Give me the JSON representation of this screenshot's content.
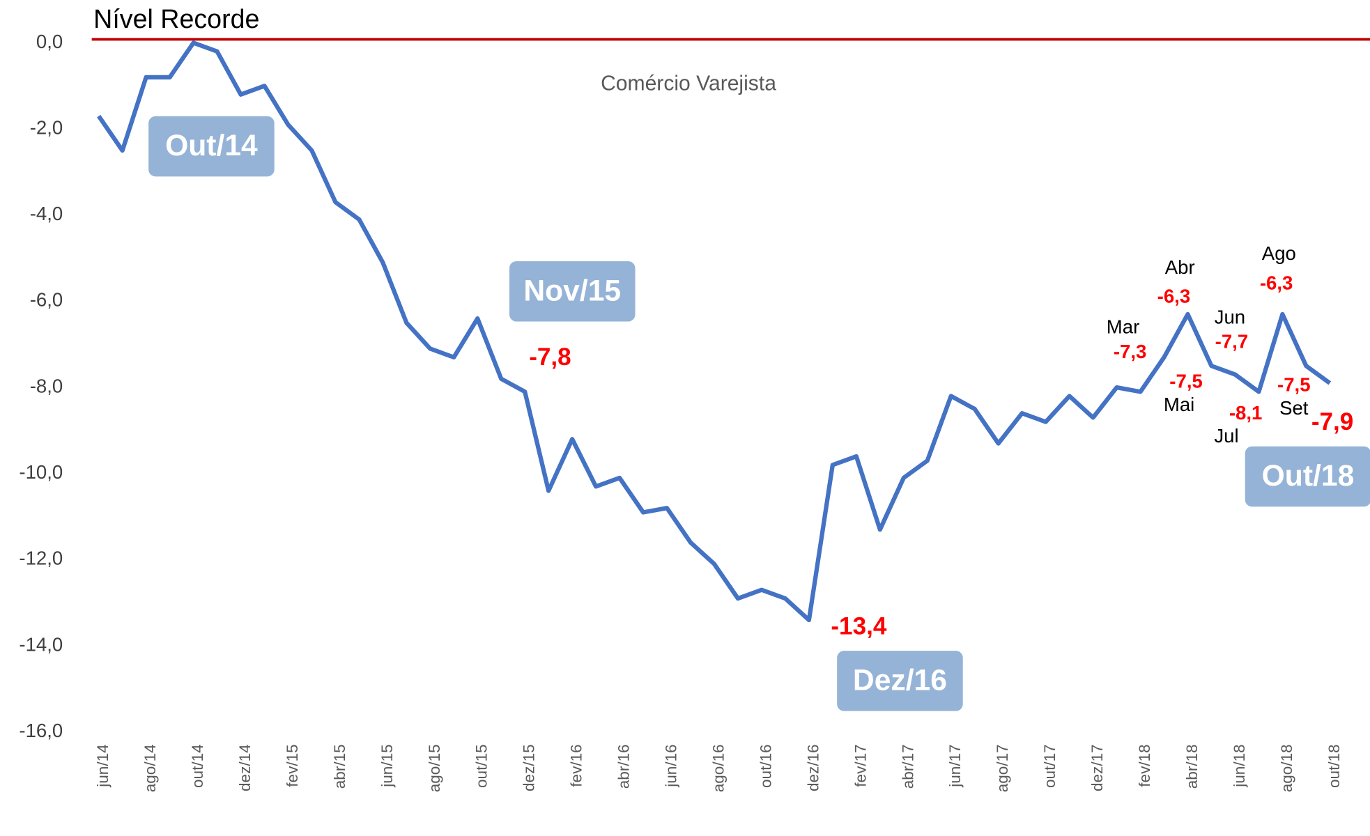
{
  "chart_data": {
    "type": "line",
    "title": "Nível Recorde",
    "subtitle": "Comércio Varejista",
    "categories": [
      "jun/14",
      null,
      "ago/14",
      null,
      "out/14",
      null,
      "dez/14",
      null,
      "fev/15",
      null,
      "abr/15",
      null,
      "jun/15",
      null,
      "ago/15",
      null,
      "out/15",
      null,
      "dez/15",
      null,
      "fev/16",
      null,
      "abr/16",
      null,
      "jun/16",
      null,
      "ago/16",
      null,
      "out/16",
      null,
      "dez/16",
      null,
      "fev/17",
      null,
      "abr/17",
      null,
      "jun/17",
      null,
      "ago/17",
      null,
      "out/17",
      null,
      "dez/17",
      null,
      "fev/18",
      null,
      "abr/18",
      null,
      "jun/18",
      null,
      "ago/18",
      null,
      "out/18"
    ],
    "series": [
      {
        "name": "Comércio Varejista",
        "color": "#4472c4",
        "values": [
          -1.7,
          -2.5,
          -0.8,
          -0.8,
          0.0,
          -0.2,
          -1.2,
          -1.0,
          -1.9,
          -2.5,
          -3.7,
          -4.1,
          -5.1,
          -6.5,
          -7.1,
          -7.3,
          -6.4,
          -7.8,
          -8.1,
          -10.4,
          -9.2,
          -10.3,
          -10.1,
          -10.9,
          -10.8,
          -11.6,
          -12.1,
          -12.9,
          -12.7,
          -12.9,
          -13.4,
          -9.8,
          -9.6,
          -11.3,
          -10.1,
          -9.7,
          -8.2,
          -8.5,
          -9.3,
          -8.6,
          -8.8,
          -8.2,
          -8.7,
          -8.0,
          -8.1,
          -7.3,
          -6.3,
          -7.5,
          -7.7,
          -8.1,
          -6.3,
          -7.5,
          -7.9
        ],
        "value_labels": [
          null,
          null,
          null,
          null,
          null,
          null,
          null,
          null,
          null,
          null,
          null,
          null,
          null,
          null,
          null,
          null,
          null,
          "-7,8",
          null,
          null,
          null,
          null,
          null,
          null,
          null,
          null,
          null,
          null,
          null,
          null,
          "-13,4",
          null,
          null,
          null,
          null,
          null,
          null,
          null,
          null,
          null,
          null,
          null,
          null,
          null,
          null,
          "-7,3",
          "-6,3",
          "-7,5",
          "-7,7",
          "-8,1",
          "-6,3",
          "-7,5",
          "-7,9"
        ],
        "point_labels": [
          null,
          null,
          null,
          null,
          null,
          null,
          null,
          null,
          null,
          null,
          null,
          null,
          null,
          null,
          null,
          null,
          null,
          null,
          null,
          null,
          null,
          null,
          null,
          null,
          null,
          null,
          null,
          null,
          null,
          null,
          null,
          null,
          null,
          null,
          null,
          null,
          null,
          null,
          null,
          null,
          null,
          null,
          null,
          null,
          null,
          "Mar",
          "Abr",
          "Mai",
          "Jun",
          "Jul",
          "Ago",
          "Set",
          null
        ],
        "callouts": [
          null,
          null,
          null,
          null,
          "Out/14",
          null,
          null,
          null,
          null,
          null,
          null,
          null,
          null,
          null,
          null,
          null,
          null,
          "Nov/15",
          null,
          null,
          null,
          null,
          null,
          null,
          null,
          null,
          null,
          null,
          null,
          null,
          "Dez/16",
          null,
          null,
          null,
          null,
          null,
          null,
          null,
          null,
          null,
          null,
          null,
          null,
          null,
          null,
          null,
          null,
          null,
          null,
          null,
          null,
          null,
          "Out/18"
        ]
      }
    ],
    "record_line": {
      "value": 0,
      "color": "#c00000"
    },
    "ylim": [
      -16,
      0
    ],
    "yticks": [
      {
        "value": 0,
        "label": "0,0"
      },
      {
        "value": -2,
        "label": "-2,0"
      },
      {
        "value": -4,
        "label": "-4,0"
      },
      {
        "value": -6,
        "label": "-6,0"
      },
      {
        "value": -8,
        "label": "-8,0"
      },
      {
        "value": -10,
        "label": "-10,0"
      },
      {
        "value": -12,
        "label": "-12,0"
      },
      {
        "value": -14,
        "label": "-14,0"
      },
      {
        "value": -16,
        "label": "-16,0"
      }
    ],
    "grid": false
  }
}
